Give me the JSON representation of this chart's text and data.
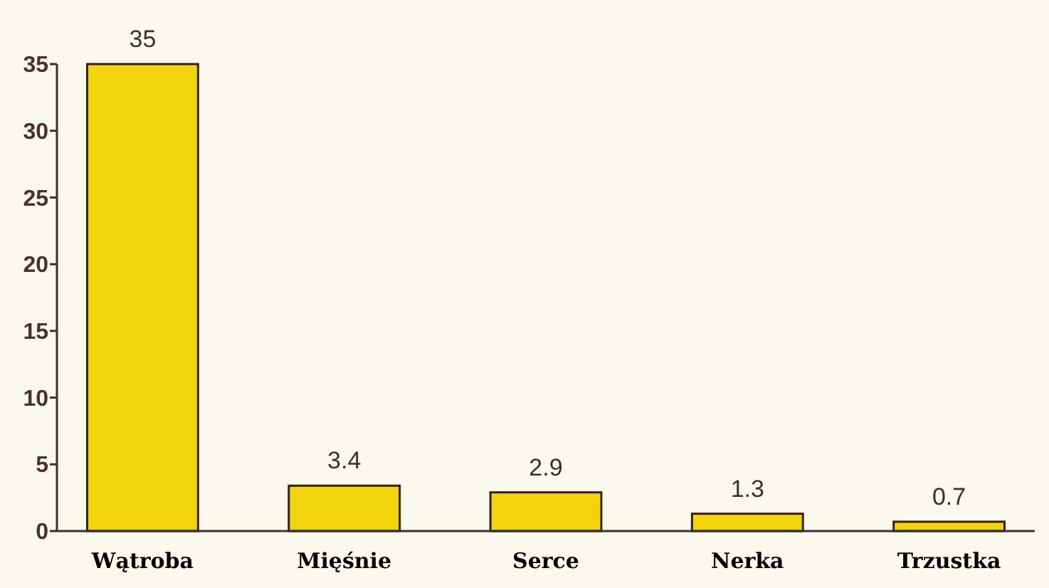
{
  "chart_data": {
    "type": "bar",
    "categories": [
      "Wątroba",
      "Mięśnie",
      "Serce",
      "Nerka",
      "Trzustka"
    ],
    "values": [
      35,
      3.4,
      2.9,
      1.3,
      0.7
    ],
    "color": "#f2d40c",
    "ylim": [
      0,
      35
    ],
    "yticks": [
      0,
      5,
      10,
      15,
      20,
      25,
      30,
      35
    ],
    "data_labels": true,
    "grid": false
  }
}
